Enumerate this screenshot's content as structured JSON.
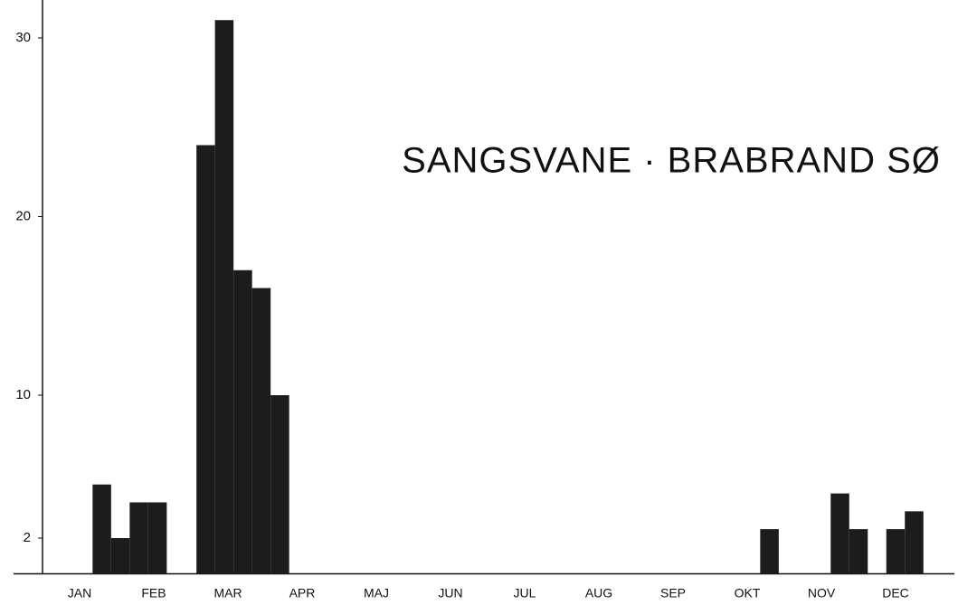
{
  "chart_data": {
    "type": "bar",
    "title": "SANGSVANE · BRABRAND SØ",
    "categories": [
      "JAN",
      "FEB",
      "MAR",
      "APR",
      "MAJ",
      "JUN",
      "JUL",
      "AUG",
      "SEP",
      "OKT",
      "NOV",
      "DEC"
    ],
    "x": [
      0.8,
      1.05,
      1.3,
      1.55,
      2.2,
      2.45,
      2.7,
      2.95,
      3.2,
      9.8,
      10.75,
      11.0,
      11.5,
      11.75
    ],
    "values": [
      5,
      2,
      4,
      4,
      24,
      31,
      17,
      16,
      10,
      2.5,
      4.5,
      2.5,
      2.5,
      3.5
    ],
    "color": "#1c1c1c",
    "xlim": [
      0,
      12
    ],
    "ylim": [
      0,
      32
    ],
    "yticks": [
      30,
      20,
      10,
      2
    ]
  }
}
